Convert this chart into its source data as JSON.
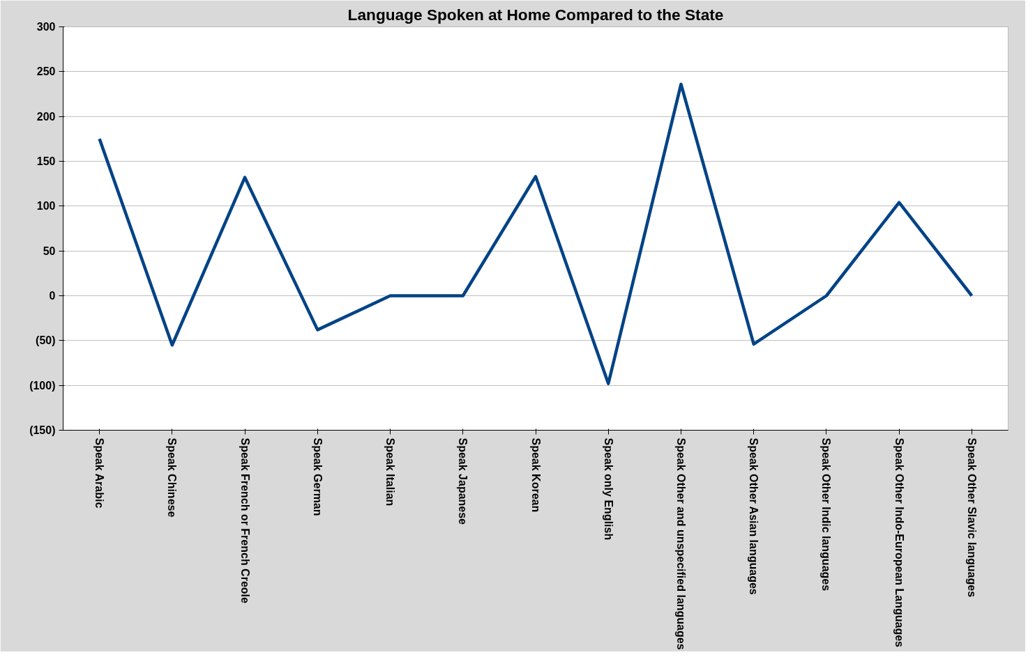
{
  "chart_data": {
    "type": "line",
    "title": "Language Spoken at Home Compared to the State",
    "categories": [
      "Speak Arabic",
      "Speak Chinese",
      "Speak French or French Creole",
      "Speak German",
      "Speak Italian",
      "Speak Japanese",
      "Speak Korean",
      "Speak only English",
      "Speak Other and unspecified languages",
      "Speak Other Asian languages",
      "Speak Other Indic languages",
      "Speak Other Indo-European Languages",
      "Speak Other Slavic languages"
    ],
    "series": [
      {
        "color": "#004386",
        "values": [
          175,
          -55,
          132,
          -38,
          0,
          0,
          133,
          -98,
          236,
          -54,
          0,
          104,
          0
        ]
      }
    ],
    "ylim": [
      -150,
      300
    ],
    "yticks": [
      {
        "value": -150,
        "label": "(150)"
      },
      {
        "value": -100,
        "label": "(100)"
      },
      {
        "value": -50,
        "label": "(50)"
      },
      0,
      50,
      100,
      150,
      200,
      250,
      300
    ],
    "grid": "y",
    "marker": "none",
    "line_style": "solid"
  }
}
